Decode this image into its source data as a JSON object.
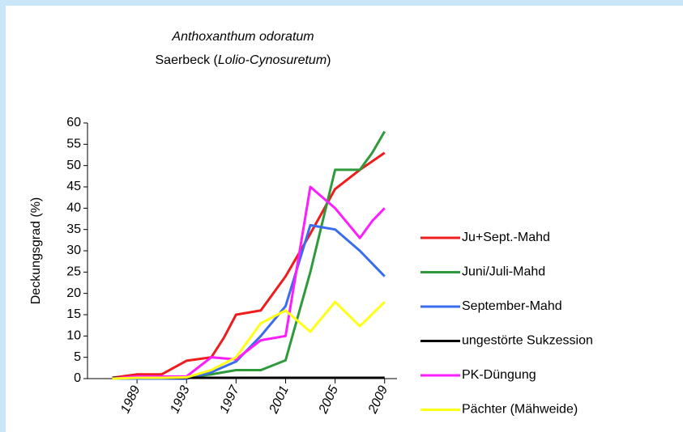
{
  "chart_data": {
    "type": "line",
    "title": "Anthoxanthum odoratum",
    "subtitle": [
      "Saerbeck (",
      "Lolio-Cynosuretum",
      ")"
    ],
    "y_label": "Deckungsgrad (%)",
    "xlim": [
      1985,
      2010
    ],
    "xticks": [
      1989,
      1993,
      1997,
      2001,
      2005,
      2009
    ],
    "ylim": [
      0,
      60
    ],
    "yticks": [
      0,
      5,
      10,
      15,
      20,
      25,
      30,
      35,
      40,
      45,
      50,
      55,
      60
    ],
    "legend": "right",
    "series": [
      {
        "name": "Ju+Sept.-Mahd",
        "color": "#ee1c1c",
        "x": [
          1987,
          1989,
          1991,
          1993,
          1995,
          1996,
          1997,
          1998,
          1999,
          2001,
          2003,
          2005,
          2007,
          2009
        ],
        "values": [
          0.2,
          1,
          1,
          4.2,
          5,
          9.5,
          15,
          15.5,
          16,
          24,
          34,
          44.5,
          49,
          53
        ]
      },
      {
        "name": "Juni/Juli-Mahd",
        "color": "#2e9a3c",
        "x": [
          1987,
          1989,
          1991,
          1993,
          1995,
          1997,
          1999,
          2001,
          2003,
          2005,
          2007,
          2008,
          2009
        ],
        "values": [
          0,
          0.2,
          0.2,
          0.3,
          1,
          2,
          2,
          4.3,
          25,
          49,
          49,
          53,
          58
        ]
      },
      {
        "name": "September-Mahd",
        "color": "#3a6cf0",
        "x": [
          1987,
          1989,
          1991,
          1993,
          1995,
          1997,
          1999,
          2001,
          2003,
          2005,
          2007,
          2009
        ],
        "values": [
          0,
          0,
          0,
          0,
          1.5,
          4,
          10,
          17,
          36,
          35,
          30,
          24
        ]
      },
      {
        "name": "ungestörte Sukzession",
        "color": "#000000",
        "x": [
          1987,
          1989,
          1991,
          1993,
          1995,
          1997,
          1999,
          2001,
          2003,
          2005,
          2007,
          2009
        ],
        "values": [
          0.2,
          0.2,
          0.2,
          0.2,
          0.2,
          0.2,
          0.2,
          0.2,
          0.2,
          0.2,
          0.2,
          0.2
        ]
      },
      {
        "name": "PK-Düngung",
        "color": "#ff1cff",
        "x": [
          1987,
          1989,
          1991,
          1993,
          1995,
          1997,
          1999,
          2001,
          2003,
          2005,
          2007,
          2008,
          2009
        ],
        "values": [
          0,
          0.5,
          0.5,
          0.5,
          5,
          4.5,
          9,
          10,
          45,
          40,
          33,
          37,
          40
        ]
      },
      {
        "name": "Pächter (Mähweide)",
        "color": "#ffff14",
        "x": [
          1987,
          1989,
          1991,
          1993,
          1995,
          1997,
          1999,
          2001,
          2003,
          2005,
          2007,
          2009
        ],
        "values": [
          0,
          0.2,
          0.2,
          0.3,
          2,
          5,
          13,
          16,
          11,
          18,
          12.3,
          18
        ]
      }
    ]
  }
}
